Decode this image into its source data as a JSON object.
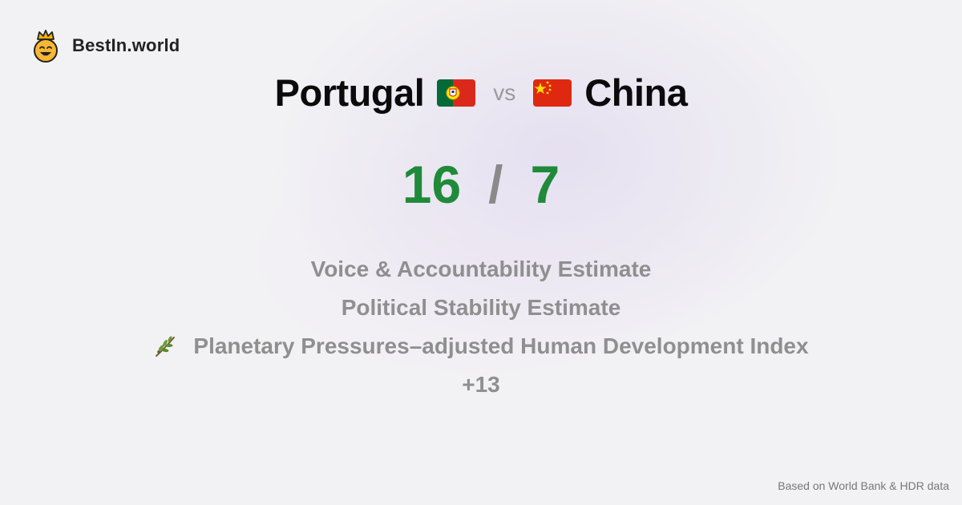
{
  "brand": {
    "name": "BestIn.world",
    "logo_icon": "crowned-smiley-icon"
  },
  "comparison": {
    "left_country": "Portugal",
    "left_flag_icon": "portugal-flag-icon",
    "vs_label": "vs",
    "right_country": "China",
    "right_flag_icon": "china-flag-icon"
  },
  "score": {
    "left": "16",
    "separator": "/",
    "right": "7",
    "color": "#1f8a3a"
  },
  "metrics": [
    {
      "label": "Voice & Accountability Estimate"
    },
    {
      "label": "Political Stability Estimate"
    },
    {
      "label": "Planetary Pressures–adjusted Human Development Index",
      "icon": "olive-branch-icon"
    }
  ],
  "more_label": "+13",
  "footer": {
    "source": "Based on World Bank & HDR data"
  }
}
